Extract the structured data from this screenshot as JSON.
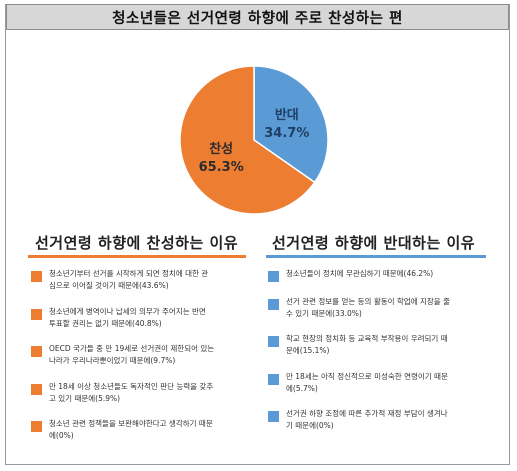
{
  "title": "청소년들은 선거연령 하향에 주로 찬성하는 편",
  "chart_data": {
    "type": "pie",
    "slices": [
      {
        "label": "찬성",
        "value": 65.3,
        "value_label": "65.3%",
        "color": "#ed7d31"
      },
      {
        "label": "반대",
        "value": 34.7,
        "value_label": "34.7%",
        "color": "#5b9bd5"
      }
    ]
  },
  "colors": {
    "accent_orange": "#ed7d31",
    "accent_blue": "#5b9bd5",
    "title_bg": "#d7d7d7"
  },
  "sections": {
    "favor": {
      "title": "선거연령 하향에 찬성하는 이유",
      "items": [
        [
          "청소년기부터 선거를 시작하게 되면 정치에 대한 관",
          "심으로 이어질 것이기 때문에(43.6%)"
        ],
        [
          "청소년에게 병역이나 납세의 의무가 주어지는 반면",
          "투표할 권리는 없기 때문에(40.8%)"
        ],
        [
          "OECD 국가들 중 만 19세로 선거권이 제한되어 있는",
          "나라가 우리나라뿐이었기 때문에(9.7%)"
        ],
        [
          "만 18세 이상 청소년들도 독자적인 판단 능력을 갖추",
          "고 있기 때문에(5.9%)"
        ],
        [
          "청소년 관련 정책들을 보완해야한다고 생각하기 때문",
          "에(0%)"
        ]
      ]
    },
    "oppose": {
      "title": "선거연령 하향에 반대하는 이유",
      "items": [
        [
          "청소년들이 정치에 무관심하기 때문에(46.2%)"
        ],
        [
          "선거 관련 정보를 얻는 등의 활동이 학업에 지장을 줄",
          "수 있기 때문에(33.0%)"
        ],
        [
          "학교 현장의 정치화 등 교육적 부작용이 우려되기 때",
          "문에(15.1%)"
        ],
        [
          "만 18세는 아직 정신적으로 미성숙한 연령이기 때문",
          "에(5.7%)"
        ],
        [
          "선거권 하향 조정에 따른 추가적 재정 부담이 생겨나",
          "기 때문에(0%)"
        ]
      ]
    }
  }
}
